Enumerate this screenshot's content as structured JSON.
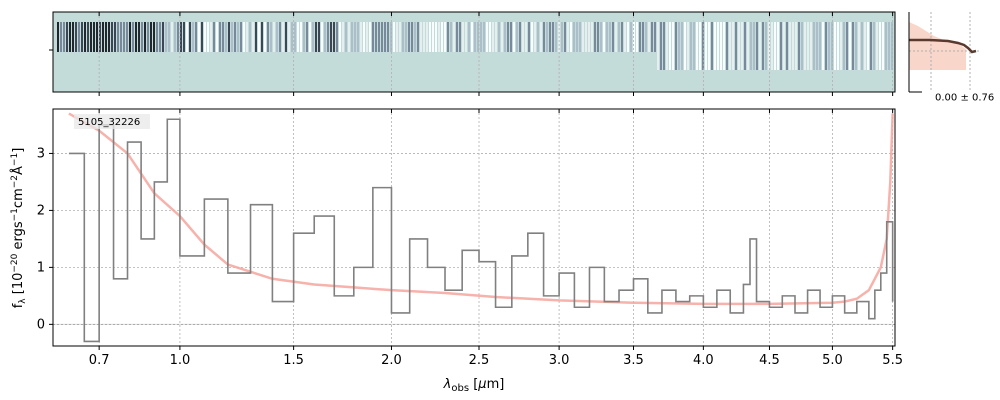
{
  "chart_data": {
    "type": "line",
    "object_id": "5105_32226",
    "xlabel": "λobs [μm]",
    "ylabel": "fλ [10⁻²⁰ ergs⁻¹cm⁻²Å⁻¹]",
    "xscale": "sqrt-like (spectral pixel)",
    "xlim": [
      0.55,
      5.52
    ],
    "ylim": [
      -0.38,
      3.78
    ],
    "x_ticks": [
      0.7,
      1.0,
      1.5,
      2.0,
      2.5,
      3.0,
      3.5,
      4.0,
      4.5,
      5.0,
      5.5
    ],
    "x_tick_labels": [
      "0.7",
      "1.0",
      "1.5",
      "2.0",
      "2.5",
      "3.0",
      "3.5",
      "4.0",
      "4.5",
      "5.0",
      "5.5"
    ],
    "y_ticks": [
      0,
      1,
      2,
      3
    ],
    "y_tick_labels": [
      "0",
      "1",
      "2",
      "3"
    ],
    "grid": true,
    "series": [
      {
        "role": "flux",
        "color": "#808080",
        "x": [
          0.6,
          0.65,
          0.7,
          0.75,
          0.8,
          0.85,
          0.9,
          0.95,
          1.0,
          1.1,
          1.2,
          1.3,
          1.4,
          1.5,
          1.6,
          1.7,
          1.8,
          1.9,
          2.0,
          2.1,
          2.2,
          2.3,
          2.4,
          2.5,
          2.6,
          2.7,
          2.8,
          2.9,
          3.0,
          3.1,
          3.2,
          3.3,
          3.4,
          3.5,
          3.6,
          3.7,
          3.8,
          3.9,
          4.0,
          4.1,
          4.2,
          4.3,
          4.35,
          4.4,
          4.5,
          4.6,
          4.7,
          4.8,
          4.9,
          5.0,
          5.1,
          5.2,
          5.3,
          5.35,
          5.4,
          5.45,
          5.5
        ],
        "y": [
          3.0,
          -0.3,
          3.5,
          0.8,
          3.2,
          1.5,
          2.5,
          3.6,
          1.2,
          2.2,
          0.9,
          2.1,
          0.4,
          1.6,
          1.9,
          0.5,
          1.0,
          2.4,
          0.2,
          1.5,
          1.0,
          0.6,
          1.3,
          1.1,
          0.3,
          1.2,
          1.6,
          0.5,
          0.9,
          0.3,
          1.0,
          0.4,
          0.6,
          0.8,
          0.2,
          0.6,
          0.4,
          0.5,
          0.3,
          0.6,
          0.2,
          0.7,
          1.5,
          0.4,
          0.3,
          0.5,
          0.2,
          0.6,
          0.3,
          0.5,
          0.2,
          0.4,
          0.1,
          0.6,
          0.9,
          1.8,
          0.4
        ]
      },
      {
        "role": "uncertainty",
        "color": "#f4a49c",
        "x": [
          0.6,
          0.7,
          0.8,
          0.9,
          1.0,
          1.1,
          1.2,
          1.4,
          1.6,
          1.8,
          2.0,
          2.3,
          2.6,
          3.0,
          3.5,
          4.0,
          4.5,
          5.0,
          5.1,
          5.2,
          5.3,
          5.35,
          5.4,
          5.45,
          5.48,
          5.5
        ],
        "y": [
          3.7,
          3.4,
          3.0,
          2.3,
          1.9,
          1.4,
          1.05,
          0.8,
          0.7,
          0.65,
          0.6,
          0.55,
          0.48,
          0.42,
          0.38,
          0.36,
          0.36,
          0.38,
          0.4,
          0.45,
          0.6,
          0.8,
          1.0,
          1.5,
          2.5,
          3.7
        ]
      }
    ],
    "thumbnail": {
      "label": "0.00 ± 0.76"
    }
  },
  "colors": {
    "flux": "#808080",
    "uncertainty": "#f4a49c",
    "spectrum2d_bg": "#c3dbd9",
    "grid": "#b0b0b0",
    "profile_line": "#5a3a2e",
    "profile_fill": "#f7c4b4"
  }
}
